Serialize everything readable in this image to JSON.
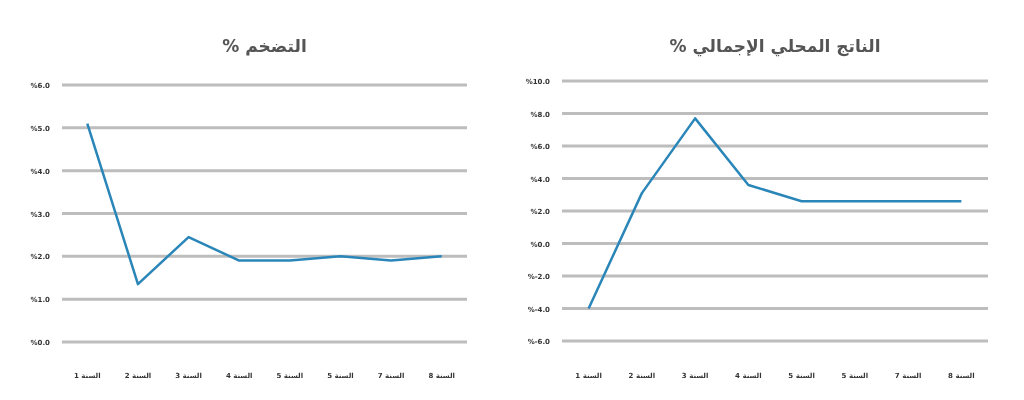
{
  "chart_data": [
    {
      "type": "line",
      "title": "التضخم %",
      "categories": [
        "السنة 1",
        "السنة 2",
        "السنة 3",
        "السنة 4",
        "السنة 5",
        "السنة 5",
        "السنة 7",
        "السنة 8"
      ],
      "series": [
        {
          "color": "#2a86b8",
          "values": [
            5.1,
            1.35,
            2.45,
            1.9,
            1.9,
            2.0,
            1.9,
            2.0
          ]
        }
      ],
      "ylim": [
        0,
        6
      ],
      "yticks": [
        {
          "value": 0,
          "label": "%0.0"
        },
        {
          "value": 1,
          "label": "%1.0"
        },
        {
          "value": 2,
          "label": "%2.0"
        },
        {
          "value": 3,
          "label": "%3.0"
        },
        {
          "value": 4,
          "label": "%4.0"
        },
        {
          "value": 5,
          "label": "%5.0"
        },
        {
          "value": 6,
          "label": "%6.0"
        }
      ],
      "grid": "y"
    },
    {
      "type": "line",
      "title": "الناتج المحلي الإجمالي %",
      "categories": [
        "السنة 1",
        "السنة 2",
        "السنة 3",
        "السنة 4",
        "السنة 5",
        "السنة 5",
        "السنة 7",
        "السنة 8"
      ],
      "series": [
        {
          "color": "#2a86b8",
          "values": [
            -4.0,
            3.1,
            7.7,
            3.6,
            2.6,
            2.6,
            2.6,
            2.6
          ]
        }
      ],
      "ylim": [
        -6,
        10
      ],
      "yticks": [
        {
          "value": -6,
          "label": "%-6.0"
        },
        {
          "value": -4,
          "label": "%-4.0"
        },
        {
          "value": -2,
          "label": "%-2.0"
        },
        {
          "value": 0,
          "label": "%0.0"
        },
        {
          "value": 2,
          "label": "%2.0"
        },
        {
          "value": 4,
          "label": "%4.0"
        },
        {
          "value": 6,
          "label": "%6.0"
        },
        {
          "value": 8,
          "label": "%8.0"
        },
        {
          "value": 10,
          "label": "%10.0"
        }
      ],
      "grid": "y"
    }
  ]
}
